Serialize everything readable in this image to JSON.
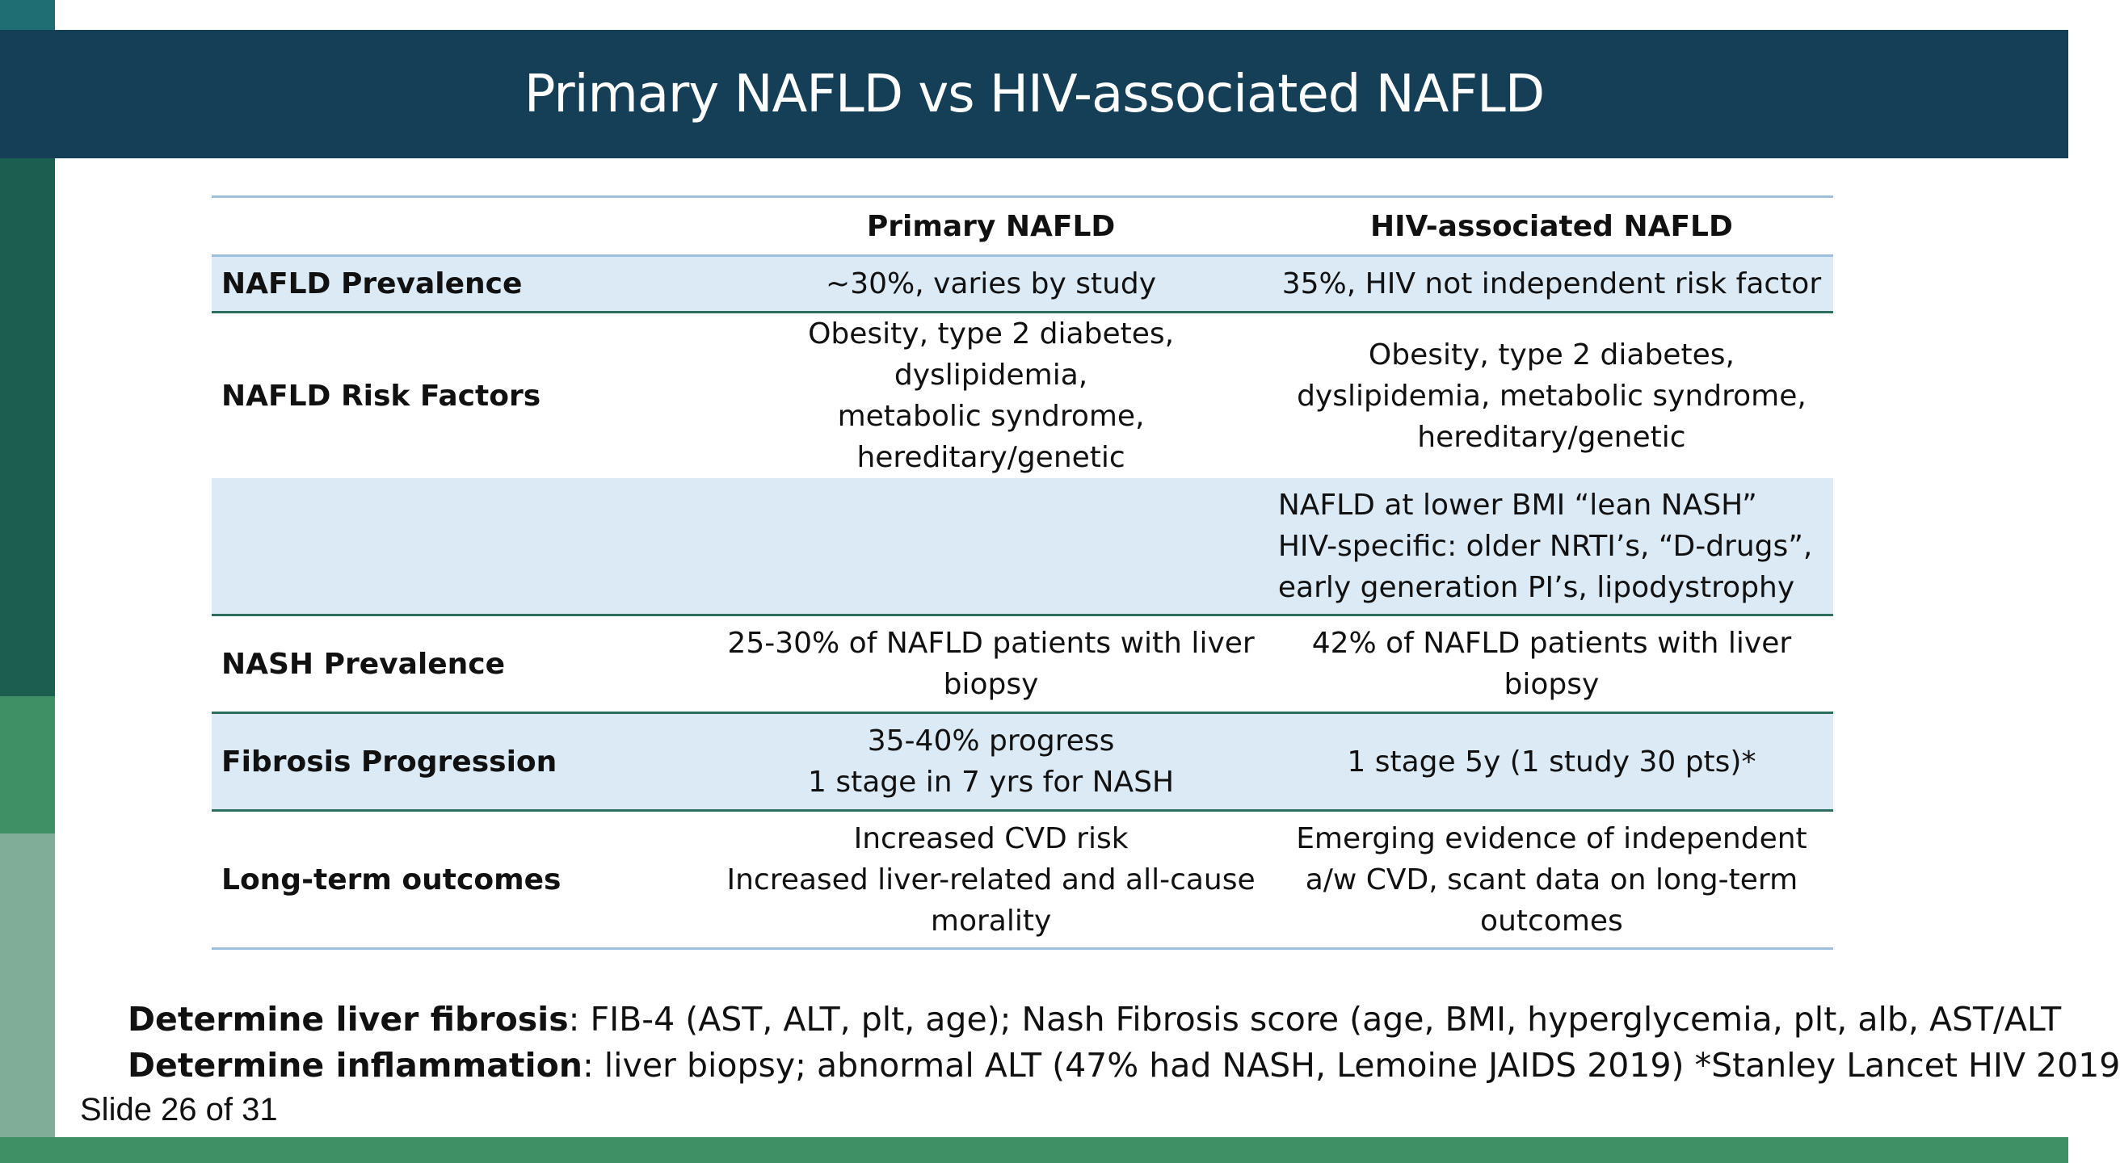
{
  "header": {
    "title": "Primary NAFLD vs HIV-associated NAFLD"
  },
  "table": {
    "columns": [
      "",
      "Primary NAFLD",
      "HIV-associated NAFLD"
    ],
    "rows": [
      {
        "label": "NAFLD Prevalence",
        "primary": [
          "~30%, varies by study"
        ],
        "hiv": [
          "35%, HIV not independent risk factor"
        ]
      },
      {
        "label": "NAFLD Risk Factors",
        "primary": [
          "Obesity, type 2 diabetes, dyslipidemia,",
          "metabolic syndrome,",
          "hereditary/genetic"
        ],
        "hiv": [
          "Obesity, type 2 diabetes,",
          "dyslipidemia, metabolic syndrome,",
          "hereditary/genetic"
        ]
      },
      {
        "label": "",
        "primary": [],
        "hiv": [
          "NAFLD at lower BMI “lean NASH”",
          "HIV-specific: older NRTI’s, “D-drugs”,",
          "early generation PI’s, lipodystrophy"
        ]
      },
      {
        "label": "NASH Prevalence",
        "primary": [
          "25-30% of NAFLD patients with liver",
          "biopsy"
        ],
        "hiv": [
          "42% of NAFLD patients with liver",
          "biopsy"
        ]
      },
      {
        "label": "Fibrosis Progression",
        "primary": [
          "35-40% progress",
          "1 stage in 7 yrs for NASH"
        ],
        "hiv": [
          "1 stage 5y (1 study 30 pts)*"
        ]
      },
      {
        "label": "Long-term outcomes",
        "primary": [
          "Increased CVD risk",
          "Increased liver-related and all-cause",
          "morality"
        ],
        "hiv": [
          "Emerging evidence of independent",
          "a/w CVD, scant data on long-term",
          "outcomes"
        ]
      }
    ]
  },
  "footnotes": {
    "fibrosis_label": "Determine liver fibrosis",
    "fibrosis_text": ": FIB-4 (AST, ALT, plt, age); Nash Fibrosis score (age, BMI, hyperglycemia, plt, alb, AST/ALT",
    "inflammation_label": "Determine inflammation",
    "inflammation_text": ": liver biopsy; abnormal ALT (47% had NASH, Lemoine JAIDS 2019)  *Stanley Lancet HIV 2019"
  },
  "slide_number": "Slide 26 of 31",
  "colors": {
    "header_band": "#153f57",
    "shaded_row": "#dceaf6",
    "accent_green": "#3f9065",
    "rule_blue": "#9fc0dc"
  }
}
